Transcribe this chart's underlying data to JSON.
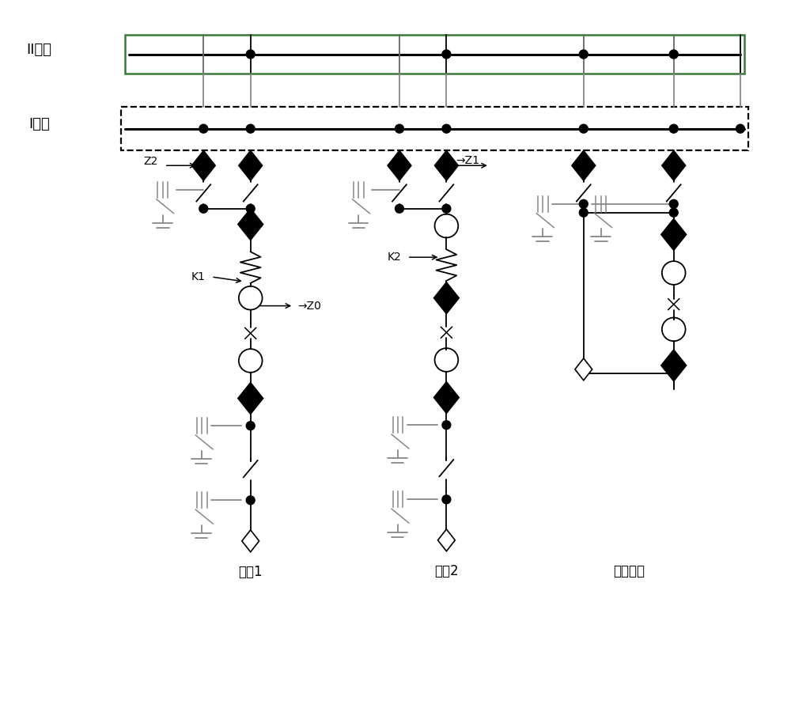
{
  "bus_II_label": "II母线",
  "bus_I_label": "I母线",
  "label_outlet1": "出线1",
  "label_outlet2": "出线2",
  "label_bus_switch": "母联开关",
  "label_Z0": "→Z0",
  "label_Z1": "→Z1",
  "label_Z2": "Z2",
  "label_K1": "K1",
  "label_K2": "K2",
  "bg_color": "#ffffff"
}
